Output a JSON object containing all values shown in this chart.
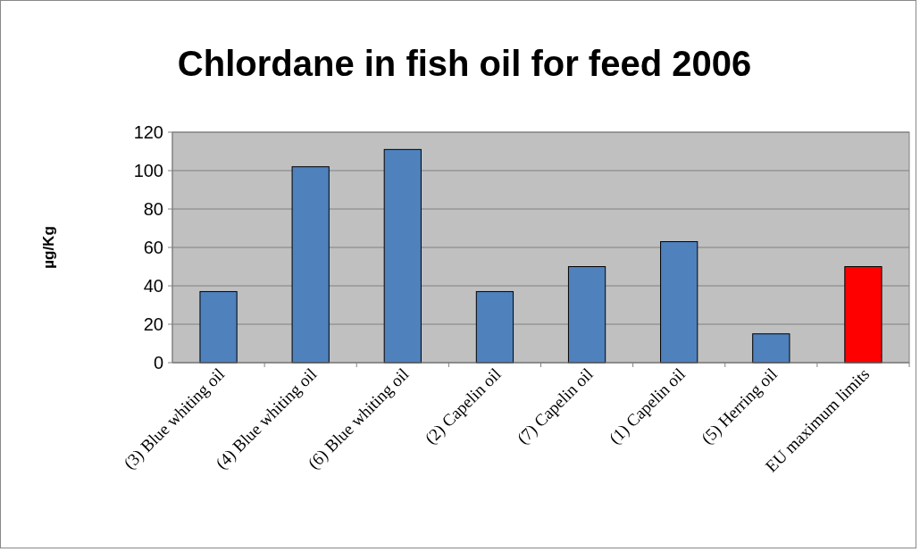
{
  "chart_data": {
    "type": "bar",
    "title": "Chlordane in fish oil for feed 2006",
    "ylabel": "µg/Kg",
    "categories": [
      "(3) Blue whiting oil",
      "(4) Blue whiting oil",
      "(6) Blue whiting oil",
      "(2) Capelin oil",
      "(7) Capelin oil",
      "(1) Capelin oil",
      "(5) Herring oil",
      "EU maximum limits"
    ],
    "values": [
      37,
      102,
      111,
      37,
      50,
      63,
      15,
      50
    ],
    "colors": [
      "#4f81bd",
      "#4f81bd",
      "#4f81bd",
      "#4f81bd",
      "#4f81bd",
      "#4f81bd",
      "#4f81bd",
      "#ff0000"
    ],
    "ylim": [
      0,
      120
    ],
    "yticks": [
      0,
      20,
      40,
      60,
      80,
      100,
      120
    ],
    "grid": "y"
  }
}
